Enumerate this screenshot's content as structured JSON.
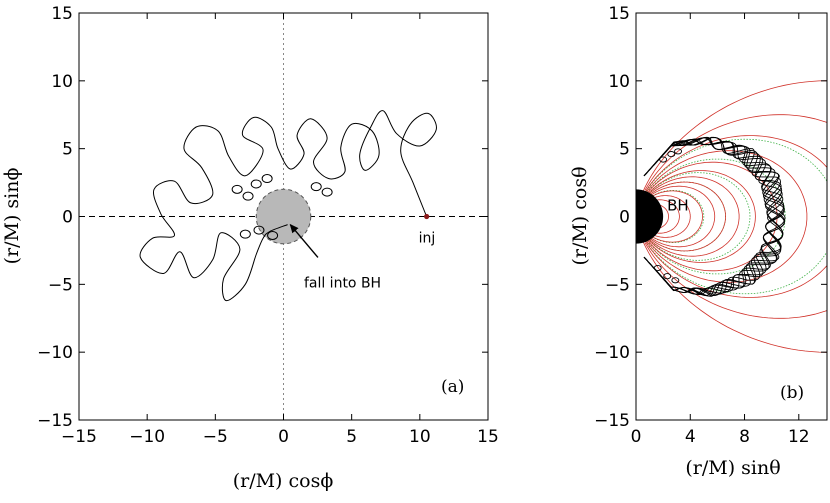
{
  "chart_data": [
    {
      "panel": "a",
      "type": "line",
      "panel_label": "(a)",
      "xlabel": "(r/M) cosϕ",
      "ylabel": "(r/M) sinϕ",
      "xlim": [
        -15,
        15
      ],
      "ylim": [
        -15,
        15
      ],
      "xticks": [
        -15,
        -10,
        -5,
        0,
        5,
        10,
        15
      ],
      "yticks": [
        -15,
        -10,
        -5,
        0,
        5,
        10,
        15
      ],
      "xtick_labels": [
        "−15",
        "−10",
        "−5",
        "0",
        "5",
        "10",
        "15"
      ],
      "ytick_labels": [
        "−15",
        "−10",
        "−5",
        "0",
        "5",
        "10",
        "15"
      ],
      "black_hole": {
        "center": [
          0,
          0
        ],
        "radius": 2,
        "color": "#b8b8b8"
      },
      "reference_lines": [
        {
          "axis": "y",
          "value": 0,
          "style": "dashed"
        },
        {
          "axis": "x",
          "value": 0,
          "style": "dotted"
        }
      ],
      "injection_point": {
        "x": 10.5,
        "y": 0,
        "label": "inj",
        "color": "#8b1a1a"
      },
      "annotation": {
        "text": "fall into BH",
        "arrow_tip": [
          0.5,
          -0.6
        ],
        "text_position": [
          1.5,
          -4.2
        ]
      },
      "trajectory": {
        "color": "#000000",
        "description_points": [
          [
            10.5,
            0
          ],
          [
            9.5,
            2.5
          ],
          [
            8.6,
            4.8
          ],
          [
            9.3,
            6.8
          ],
          [
            10.6,
            7.6
          ],
          [
            11.2,
            6.4
          ],
          [
            10.0,
            5.2
          ],
          [
            8.3,
            6.1
          ],
          [
            7.3,
            7.8
          ],
          [
            6.4,
            6.6
          ],
          [
            5.6,
            4.6
          ],
          [
            6.0,
            3.4
          ],
          [
            7.0,
            4.5
          ],
          [
            6.5,
            6.3
          ],
          [
            5.0,
            6.8
          ],
          [
            4.2,
            5.1
          ],
          [
            4.5,
            3.3
          ],
          [
            3.3,
            2.8
          ],
          [
            2.2,
            4.0
          ],
          [
            3.2,
            5.8
          ],
          [
            2.0,
            7.2
          ],
          [
            1.0,
            6.0
          ],
          [
            1.5,
            4.6
          ],
          [
            0.5,
            3.5
          ],
          [
            -0.4,
            5.0
          ],
          [
            -0.9,
            6.6
          ],
          [
            -2.2,
            7.3
          ],
          [
            -3.0,
            6.0
          ],
          [
            -1.5,
            4.9
          ],
          [
            -2.8,
            3.0
          ],
          [
            -4.0,
            4.4
          ],
          [
            -4.8,
            6.3
          ],
          [
            -6.4,
            6.6
          ],
          [
            -7.3,
            5.0
          ],
          [
            -6.0,
            3.6
          ],
          [
            -5.2,
            1.6
          ],
          [
            -6.8,
            1.0
          ],
          [
            -8.0,
            2.6
          ],
          [
            -9.5,
            2.0
          ],
          [
            -9.0,
            0.2
          ],
          [
            -8.0,
            -1.4
          ],
          [
            -9.6,
            -1.6
          ],
          [
            -10.5,
            -3.0
          ],
          [
            -8.8,
            -4.2
          ],
          [
            -7.6,
            -2.6
          ],
          [
            -6.6,
            -4.5
          ],
          [
            -5.2,
            -3.2
          ],
          [
            -4.6,
            -1.2
          ],
          [
            -3.2,
            -2.4
          ],
          [
            -4.4,
            -4.6
          ],
          [
            -4.2,
            -6.2
          ],
          [
            -2.8,
            -5.0
          ],
          [
            -2.0,
            -2.8
          ],
          [
            -1.5,
            -1.6
          ],
          [
            -1.0,
            -1.1
          ],
          [
            0.3,
            -0.6
          ]
        ]
      }
    },
    {
      "panel": "b",
      "type": "line",
      "panel_label": "(b)",
      "xlabel": "(r/M) sinθ",
      "ylabel": "(r/M) cosθ",
      "xlim": [
        0,
        15
      ],
      "ylim": [
        -15,
        15
      ],
      "xticks": [
        0,
        4,
        8,
        12
      ],
      "yticks": [
        -15,
        -10,
        -5,
        0,
        5,
        10,
        15
      ],
      "xtick_labels": [
        "0",
        "4",
        "8",
        "12"
      ],
      "ytick_labels": [
        "−15",
        "−10",
        "−5",
        "0",
        "5",
        "10",
        "15"
      ],
      "black_hole": {
        "center": [
          0,
          0
        ],
        "radius": 2,
        "label": "BH",
        "color": "#000000"
      },
      "field_lines_red": {
        "color": "#d0322a",
        "scales": [
          2.4,
          3.2,
          4.0,
          4.9,
          5.8,
          6.6,
          7.6,
          8.8,
          10.4,
          12.6,
          15.5,
          19.5,
          26.0
        ]
      },
      "field_lines_green": {
        "color": "#3cb043",
        "scales": [
          5.0,
          6.6,
          8.4,
          11.0,
          14.8
        ]
      },
      "trajectory_band": {
        "color": "#000000",
        "inner_boundary": [
          [
            0.6,
            3.0
          ],
          [
            2.6,
            5.2
          ],
          [
            5.2,
            5.3
          ],
          [
            7.6,
            4.2
          ],
          [
            9.2,
            2.4
          ],
          [
            9.7,
            0
          ],
          [
            9.2,
            -2.4
          ],
          [
            7.6,
            -4.2
          ],
          [
            5.2,
            -5.3
          ],
          [
            2.6,
            -5.2
          ],
          [
            0.6,
            -3.0
          ]
        ],
        "outer_boundary": [
          [
            0.6,
            3.0
          ],
          [
            2.8,
            5.5
          ],
          [
            5.6,
            5.9
          ],
          [
            8.6,
            5.0
          ],
          [
            10.6,
            3.0
          ],
          [
            11.0,
            0
          ],
          [
            10.6,
            -3.0
          ],
          [
            8.6,
            -5.0
          ],
          [
            5.6,
            -5.9
          ],
          [
            2.8,
            -5.5
          ],
          [
            0.6,
            -3.0
          ]
        ]
      }
    }
  ]
}
